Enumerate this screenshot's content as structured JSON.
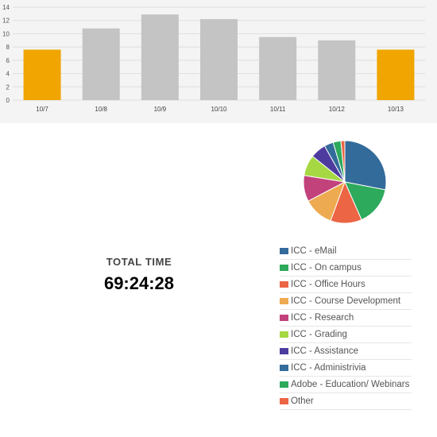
{
  "chart_data": [
    {
      "type": "bar",
      "categories": [
        "10/7",
        "10/8",
        "10/9",
        "10/10",
        "10/11",
        "10/12",
        "10/13"
      ],
      "values": [
        7.6,
        10.8,
        12.9,
        12.2,
        9.5,
        9.0,
        7.6
      ],
      "ylim": [
        0,
        14
      ],
      "yticks": [
        0,
        2,
        4,
        6,
        8,
        10,
        12,
        14
      ],
      "grid": true,
      "colors": [
        "#f0a500",
        "#c4c4c4",
        "#c4c4c4",
        "#c4c4c4",
        "#c4c4c4",
        "#c4c4c4",
        "#f0a500"
      ]
    },
    {
      "type": "pie",
      "labels": [
        "ICC - eMail",
        "ICC - On campus",
        "ICC - Office Hours",
        "ICC - Course Development",
        "ICC - Research",
        "ICC - Grading",
        "ICC - Assistance",
        "ICC - Administrivia",
        "Adobe - Education/ Webinars",
        "Other"
      ],
      "values": [
        27.5,
        15,
        12,
        11.5,
        10,
        8,
        6,
        3.5,
        3,
        1.5
      ],
      "colors": [
        "#336b9a",
        "#2daa5c",
        "#ec6545",
        "#eeaa50",
        "#c2427c",
        "#a5d843",
        "#4d3c9e",
        "#336b9a",
        "#2daa5c",
        "#ec6545"
      ],
      "legend": "right-bottom"
    }
  ],
  "summary": {
    "label": "TOTAL  TIME",
    "value": "69:24:28"
  }
}
